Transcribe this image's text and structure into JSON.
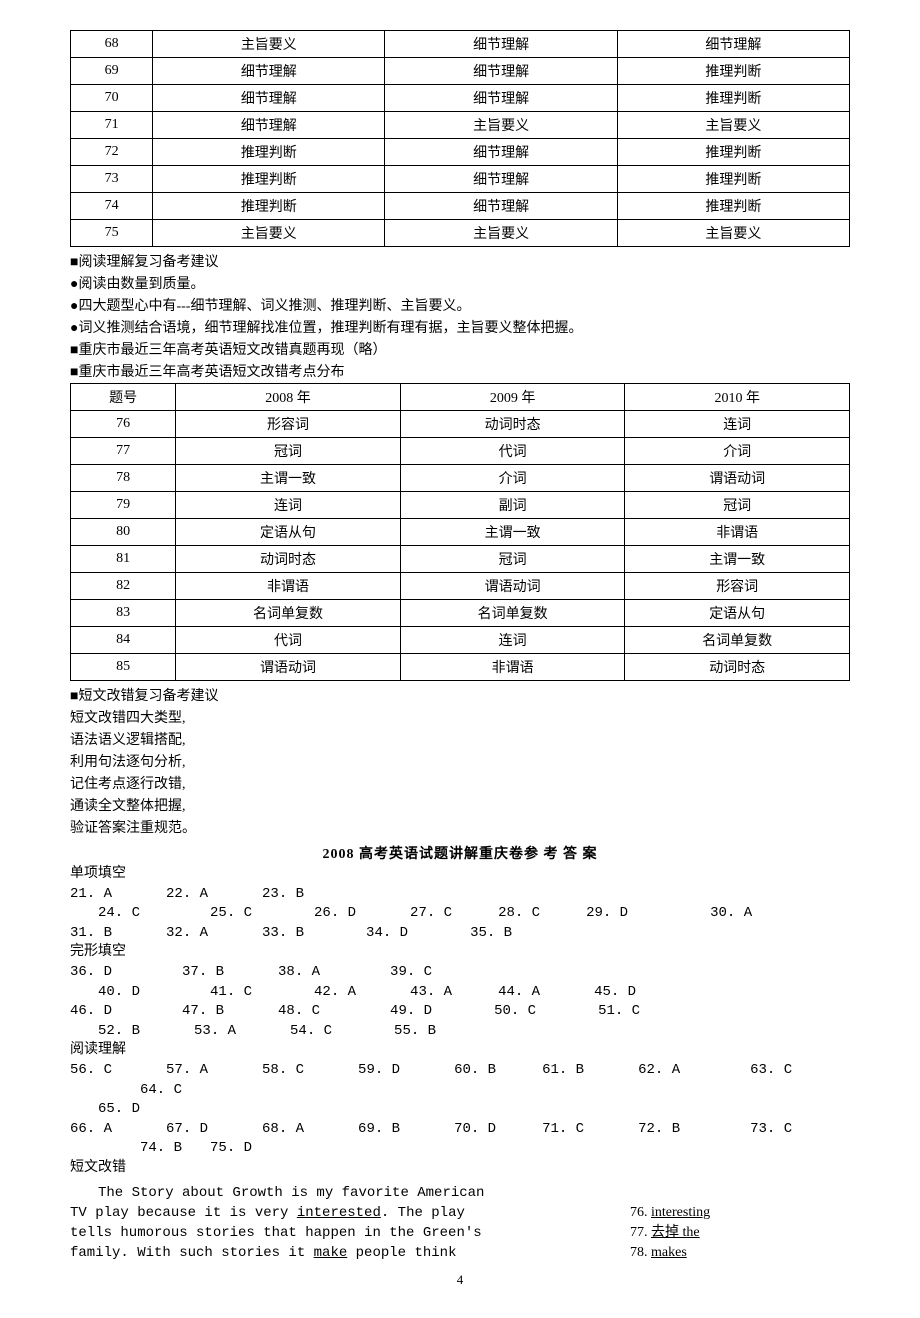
{
  "table1": {
    "rows": [
      [
        "68",
        "主旨要义",
        "细节理解",
        "细节理解"
      ],
      [
        "69",
        "细节理解",
        "细节理解",
        "推理判断"
      ],
      [
        "70",
        "细节理解",
        "细节理解",
        "推理判断"
      ],
      [
        "71",
        "细节理解",
        "主旨要义",
        "主旨要义"
      ],
      [
        "72",
        "推理判断",
        "细节理解",
        "推理判断"
      ],
      [
        "73",
        "推理判断",
        "细节理解",
        "推理判断"
      ],
      [
        "74",
        "推理判断",
        "细节理解",
        "推理判断"
      ],
      [
        "75",
        "主旨要义",
        "主旨要义",
        "主旨要义"
      ]
    ]
  },
  "reading_heading": "■阅读理解复习备考建议",
  "reading_bullets": [
    "●阅读由数量到质量。",
    "●四大题型心中有---细节理解、词义推测、推理判断、主旨要义。",
    "●词义推测结合语境，细节理解找准位置，推理判断有理有据，主旨要义整体把握。"
  ],
  "error_heading1": "■重庆市最近三年高考英语短文改错真题再现（略）",
  "error_heading2": "■重庆市最近三年高考英语短文改错考点分布",
  "table2": {
    "header": [
      "题号",
      "2008 年",
      "2009 年",
      "2010 年"
    ],
    "rows": [
      [
        "76",
        "形容词",
        "动词时态",
        "连词"
      ],
      [
        "77",
        "冠词",
        "代词",
        "介词"
      ],
      [
        "78",
        "主谓一致",
        "介词",
        "谓语动词"
      ],
      [
        "79",
        "连词",
        "副词",
        "冠词"
      ],
      [
        "80",
        "定语从句",
        "主谓一致",
        "非谓语"
      ],
      [
        "81",
        "动词时态",
        "冠词",
        "主谓一致"
      ],
      [
        "82",
        "非谓语",
        "谓语动词",
        "形容词"
      ],
      [
        "83",
        "名词单复数",
        "名词单复数",
        "定语从句"
      ],
      [
        "84",
        "代词",
        "连词",
        "名词单复数"
      ],
      [
        "85",
        "谓语动词",
        "非谓语",
        "动词时态"
      ]
    ]
  },
  "short_heading": "■短文改错复习备考建议",
  "short_lines": [
    "短文改错四大类型,",
    "语法语义逻辑搭配,",
    "利用句法逐句分析,",
    "记住考点逐行改错,",
    "通读全文整体把握,",
    "验证答案注重规范。"
  ],
  "answers_title": "2008 高考英语试题讲解重庆卷参 考 答  案",
  "sections": {
    "single": {
      "label": "单项填空",
      "lines": [
        [
          [
            "21. A",
            0
          ],
          [
            "22. A",
            54
          ],
          [
            "23. B",
            54
          ]
        ],
        [
          [
            "24. C",
            28
          ],
          [
            "25. C",
            70
          ],
          [
            "26. D",
            62
          ],
          [
            "27. C",
            54
          ],
          [
            "28. C",
            46
          ],
          [
            "29. D",
            46
          ],
          [
            "30. A",
            82
          ]
        ],
        [
          [
            "31. B",
            0
          ],
          [
            "32. A",
            54
          ],
          [
            "33. B",
            54
          ],
          [
            "34. D",
            62
          ],
          [
            "35. B",
            62
          ]
        ]
      ]
    },
    "cloze": {
      "label": "完形填空",
      "lines": [
        [
          [
            "36. D",
            0
          ],
          [
            "37. B",
            70
          ],
          [
            "38. A",
            54
          ],
          [
            "39. C",
            70
          ]
        ],
        [
          [
            "40. D",
            28
          ],
          [
            "41. C",
            70
          ],
          [
            "42. A",
            62
          ],
          [
            "43. A",
            54
          ],
          [
            "44. A",
            46
          ],
          [
            "45. D",
            54
          ]
        ],
        [
          [
            "46. D",
            0
          ],
          [
            "47. B",
            70
          ],
          [
            "48. C",
            54
          ],
          [
            "49. D",
            70
          ],
          [
            "50. C",
            62
          ],
          [
            "51. C",
            62
          ]
        ],
        [
          [
            "52. B",
            28
          ],
          [
            "53. A",
            54
          ],
          [
            "54. C",
            54
          ],
          [
            "55. B",
            62
          ]
        ]
      ]
    },
    "reading": {
      "label": "阅读理解",
      "lines": [
        [
          [
            "56. C",
            0
          ],
          [
            "57. A",
            54
          ],
          [
            "58. C",
            54
          ],
          [
            "59. D",
            54
          ],
          [
            "60. B",
            54
          ],
          [
            "61. B",
            46
          ],
          [
            "62. A",
            54
          ],
          [
            "63. C",
            70
          ],
          [
            "64. C",
            70
          ]
        ],
        [
          [
            "65. D",
            28
          ]
        ],
        [
          [
            "66. A",
            0
          ],
          [
            "67. D",
            54
          ],
          [
            "68. A",
            54
          ],
          [
            "69. B",
            54
          ],
          [
            "70. D",
            54
          ],
          [
            "71. C",
            46
          ],
          [
            "72. B",
            54
          ],
          [
            "73. C",
            70
          ],
          [
            "74. B",
            70
          ],
          [
            "75. D",
            28
          ]
        ]
      ]
    },
    "correction_label": "短文改错"
  },
  "correction": {
    "line0_indent": "The Story about Growth is my favorite American",
    "line1a": "TV play because it is very ",
    "line1u": "interested",
    "line1b": ". The play",
    "line2": "tells humorous stories that happen in the Green's",
    "line3a": "family. With such stories it ",
    "line3u": "make",
    "line3b": " people think",
    "ans": [
      {
        "n": "76.",
        "word": "interesting",
        "trail": "  "
      },
      {
        "n": "77.",
        "word": " 去掉 the",
        "trail": "        "
      },
      {
        "n": "78.",
        "word": "makes",
        "trail": "    "
      }
    ]
  },
  "page_number": "4"
}
